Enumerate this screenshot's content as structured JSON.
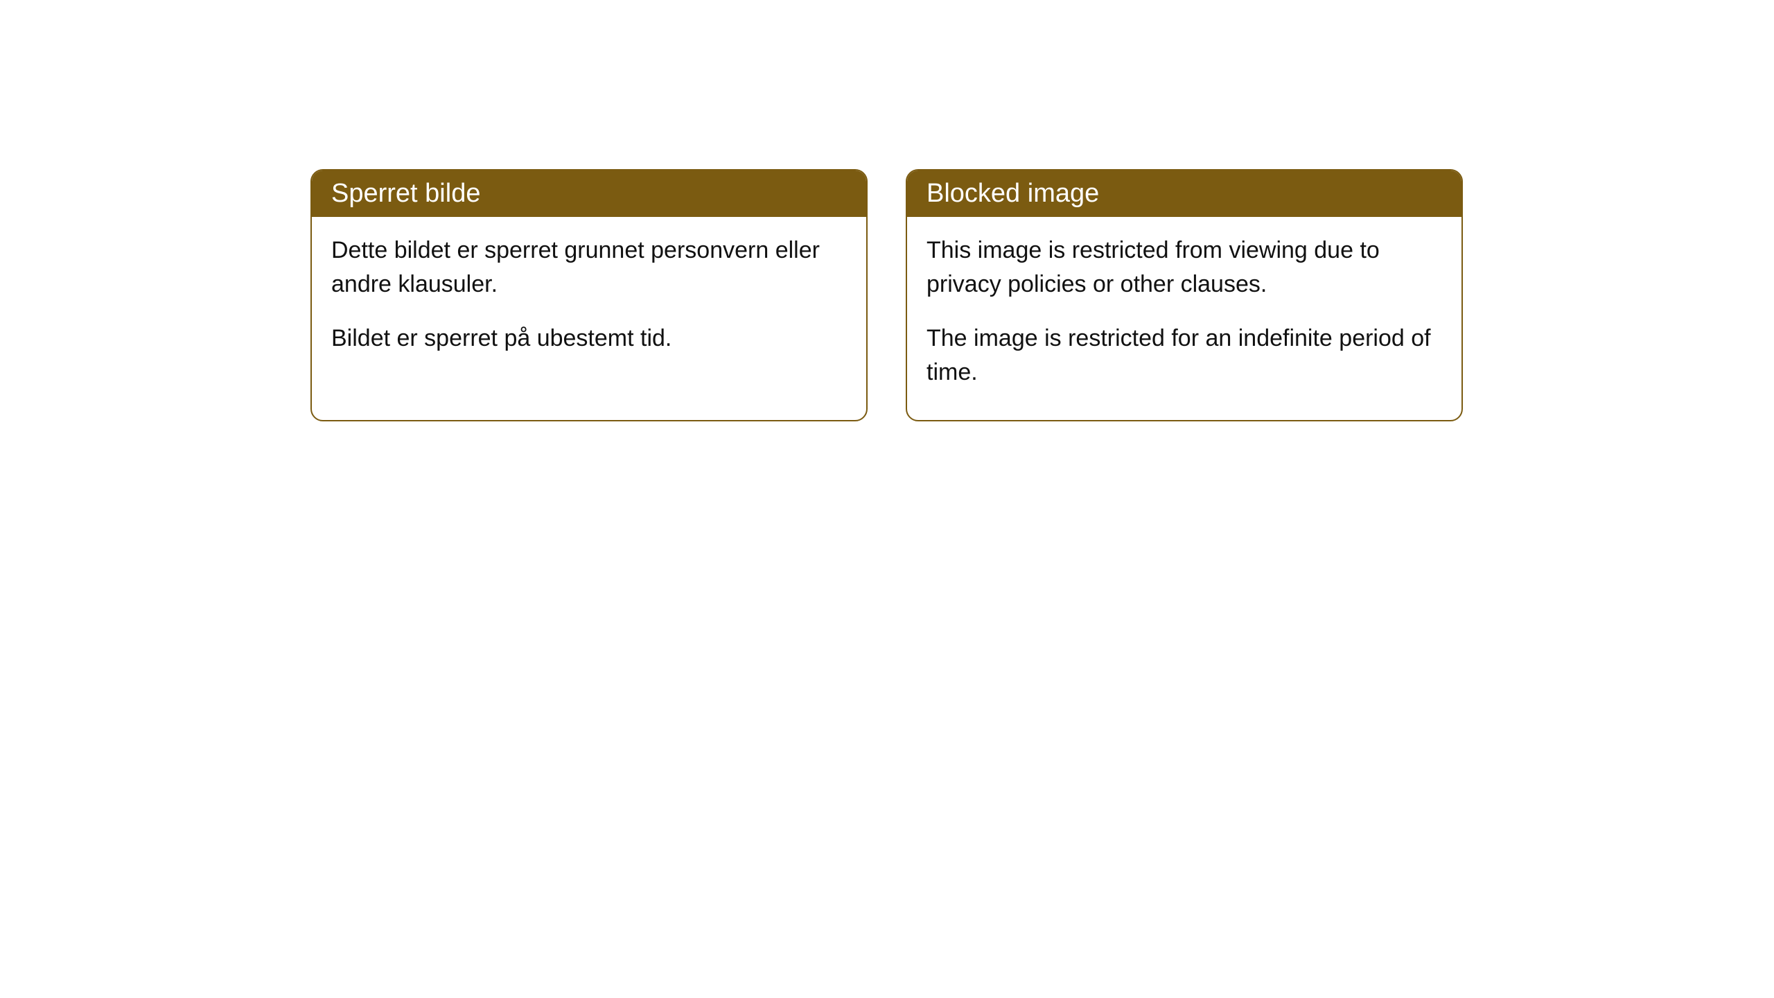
{
  "cards": [
    {
      "title": "Sperret bilde",
      "paragraph1": "Dette bildet er sperret grunnet personvern eller andre klausuler.",
      "paragraph2": "Bildet er sperret på ubestemt tid."
    },
    {
      "title": "Blocked image",
      "paragraph1": "This image is restricted from viewing due to privacy policies or other clauses.",
      "paragraph2": "The image is restricted for an indefinite period of time."
    }
  ],
  "styling": {
    "header_bg_color": "#7b5b11",
    "header_text_color": "#ffffff",
    "border_color": "#7b5b11",
    "body_text_color": "#111111",
    "card_bg_color": "#ffffff",
    "page_bg_color": "#ffffff",
    "border_radius": 18,
    "header_fontsize": 38,
    "body_fontsize": 34
  }
}
